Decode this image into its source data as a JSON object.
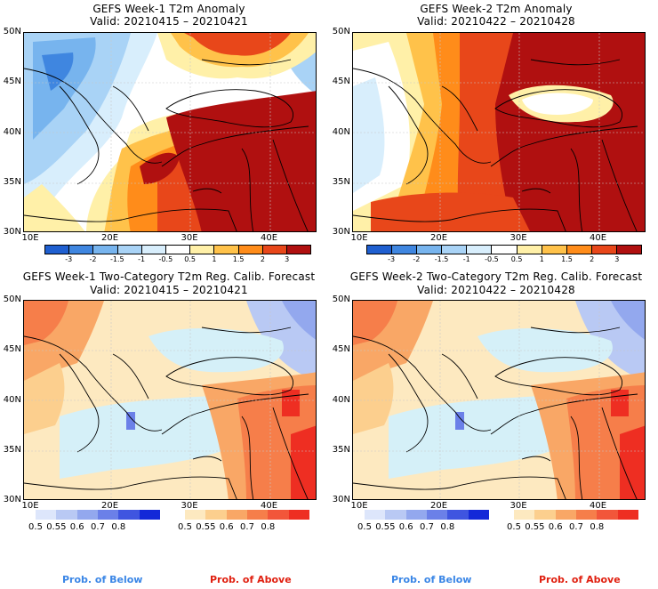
{
  "panels": [
    {
      "title": "GEFS Week-1 T2m Anomaly",
      "valid": "Valid: 20210415 – 20210421"
    },
    {
      "title": "GEFS Week-2 T2m Anomaly",
      "valid": "Valid: 20210422 – 20210428"
    },
    {
      "title": "GEFS Week-1 Two-Category T2m Reg. Calib. Forecast",
      "valid": "Valid: 20210415 – 20210421"
    },
    {
      "title": "GEFS Week-2 Two-Category T2m Reg. Calib. Forecast",
      "valid": "Valid: 20210422 – 20210428"
    }
  ],
  "axes": {
    "lat": [
      "50N",
      "45N",
      "40N",
      "35N",
      "30N"
    ],
    "lon": [
      "10E",
      "20E",
      "30E",
      "40E"
    ]
  },
  "anomaly_colorbar": {
    "ticks": [
      "-3",
      "-2",
      "-1.5",
      "-1",
      "-0.5",
      "0.5",
      "1",
      "1.5",
      "2",
      "3"
    ],
    "colors": [
      "#1f5fd0",
      "#3f86e0",
      "#77b4ee",
      "#a9d3f6",
      "#d8eefc",
      "#ffffff",
      "#fff0a8",
      "#ffc24a",
      "#ff8c1a",
      "#e8471a",
      "#b01010"
    ]
  },
  "prob_colorbars": {
    "below": {
      "ticks": [
        "0.5",
        "0.55",
        "0.6",
        "0.7",
        "0.8"
      ],
      "colors": [
        "#dde6fb",
        "#b9c9f4",
        "#93a8ee",
        "#6b80e8",
        "#3f55e0",
        "#1428d8"
      ]
    },
    "above": {
      "ticks": [
        "0.5",
        "0.55",
        "0.6",
        "0.7",
        "0.8"
      ],
      "colors": [
        "#fde9c0",
        "#fccf8e",
        "#f9a766",
        "#f67e4a",
        "#f2563a",
        "#ee2e22"
      ]
    }
  },
  "footer": {
    "below": "Prob. of Below",
    "above": "Prob. of Above",
    "below_color": "#3a86e6",
    "above_color": "#e02010"
  }
}
